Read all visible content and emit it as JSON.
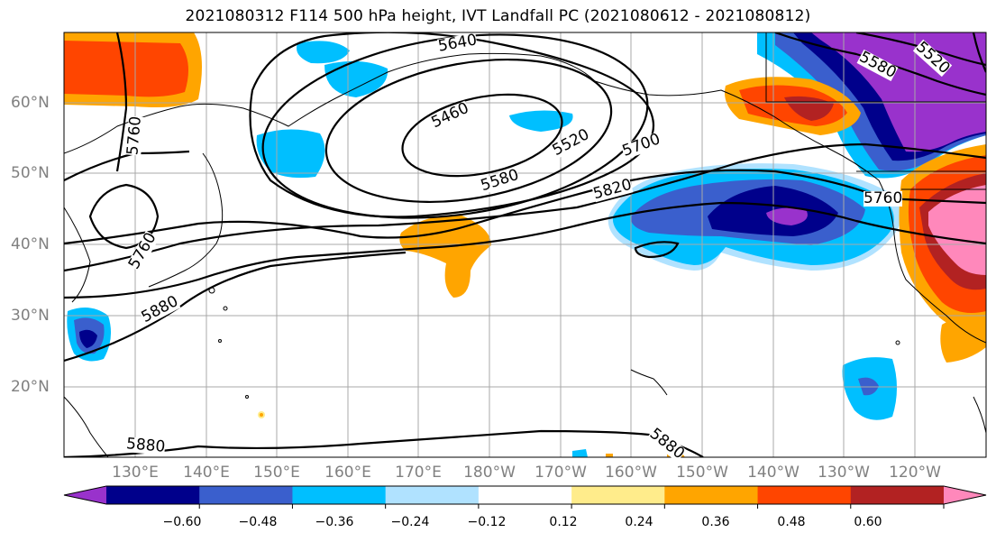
{
  "title": "2021080312 F114 500 hPa height, IVT Landfall PC (2021080612 - 2021080812)",
  "lat_labels": [
    "60°N",
    "50°N",
    "40°N",
    "30°N",
    "20°N"
  ],
  "lon_labels": [
    "130°E",
    "140°E",
    "150°E",
    "160°E",
    "170°E",
    "180°W",
    "170°W",
    "160°W",
    "150°W",
    "140°W",
    "130°W",
    "120°W"
  ],
  "contour_labels": [
    "5640",
    "5460",
    "5520",
    "5580",
    "5700",
    "5820",
    "5760",
    "5760",
    "5880",
    "5880",
    "5880",
    "5580",
    "5520",
    "5760"
  ],
  "colorbar": {
    "tick_labels": [
      "−0.60",
      "−0.48",
      "−0.36",
      "−0.24",
      "−0.12",
      "0.12",
      "0.24",
      "0.36",
      "0.48",
      "0.60"
    ],
    "colors": [
      "#9932cc",
      "#00008b",
      "#3a5fcd",
      "#00bfff",
      "#b0e2ff",
      "#ffffff",
      "#ffec8b",
      "#ffa500",
      "#ff4500",
      "#b22222",
      "#ff88bb"
    ]
  }
}
